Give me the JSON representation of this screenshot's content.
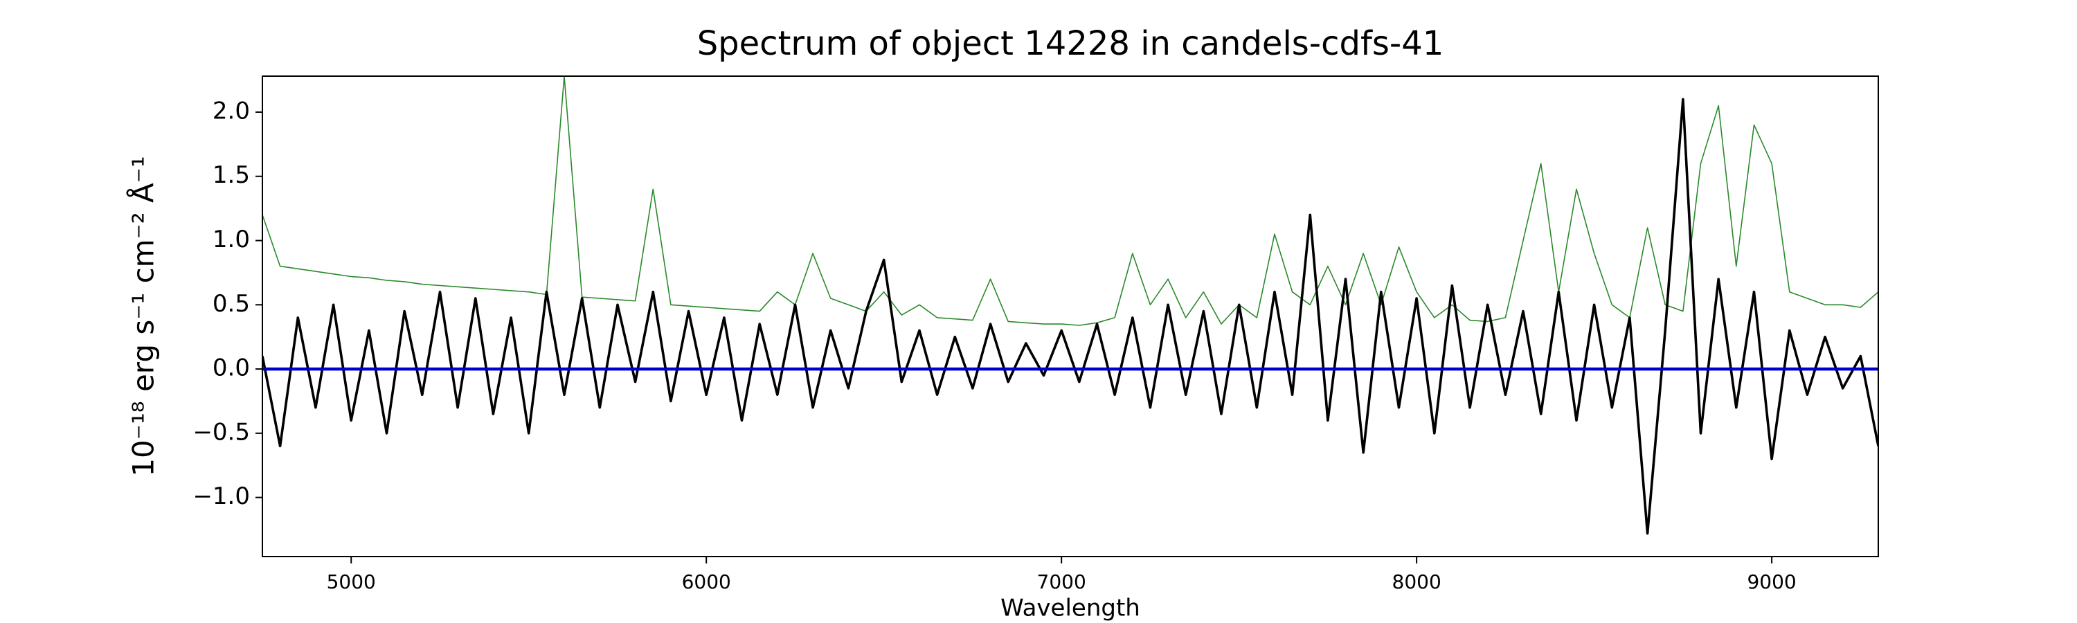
{
  "chart_data": {
    "type": "line",
    "title": "Spectrum of object 14228 in candels-cdfs-41",
    "xlabel": "Wavelength",
    "ylabel": "10⁻¹⁸ erg s⁻¹ cm⁻² Å⁻¹",
    "x": [
      4750,
      4800,
      4850,
      4900,
      4950,
      5000,
      5050,
      5100,
      5150,
      5200,
      5250,
      5300,
      5350,
      5400,
      5450,
      5500,
      5550,
      5600,
      5650,
      5700,
      5750,
      5800,
      5850,
      5900,
      5950,
      6000,
      6050,
      6100,
      6150,
      6200,
      6250,
      6300,
      6350,
      6400,
      6450,
      6500,
      6550,
      6600,
      6650,
      6700,
      6750,
      6800,
      6850,
      6900,
      6950,
      7000,
      7050,
      7100,
      7150,
      7200,
      7250,
      7300,
      7350,
      7400,
      7450,
      7500,
      7550,
      7600,
      7650,
      7700,
      7750,
      7800,
      7850,
      7900,
      7950,
      8000,
      8050,
      8100,
      8150,
      8200,
      8250,
      8300,
      8350,
      8400,
      8450,
      8500,
      8550,
      8600,
      8650,
      8700,
      8750,
      8800,
      8850,
      8900,
      8950,
      9000,
      9050,
      9100,
      9150,
      9200,
      9250,
      9300
    ],
    "series": [
      {
        "color": "#2a8a2a",
        "values": [
          1.2,
          0.8,
          0.78,
          0.76,
          0.74,
          0.72,
          0.71,
          0.69,
          0.68,
          0.66,
          0.65,
          0.64,
          0.63,
          0.62,
          0.61,
          0.6,
          0.58,
          2.28,
          0.56,
          0.55,
          0.54,
          0.53,
          1.4,
          0.5,
          0.49,
          0.48,
          0.47,
          0.46,
          0.45,
          0.6,
          0.5,
          0.9,
          0.55,
          0.5,
          0.45,
          0.6,
          0.42,
          0.5,
          0.4,
          0.39,
          0.38,
          0.7,
          0.37,
          0.36,
          0.35,
          0.35,
          0.34,
          0.36,
          0.4,
          0.9,
          0.5,
          0.7,
          0.4,
          0.6,
          0.35,
          0.5,
          0.4,
          1.05,
          0.6,
          0.5,
          0.8,
          0.5,
          0.9,
          0.5,
          0.95,
          0.6,
          0.4,
          0.5,
          0.38,
          0.37,
          0.4,
          1.0,
          1.6,
          0.6,
          1.4,
          0.9,
          0.5,
          0.4,
          1.1,
          0.5,
          0.45,
          1.6,
          2.05,
          0.8,
          1.9,
          1.6,
          0.6,
          0.55,
          0.5,
          0.5,
          0.48,
          0.6
        ]
      },
      {
        "color": "#000000",
        "values": [
          0.1,
          -0.6,
          0.4,
          -0.3,
          0.5,
          -0.4,
          0.3,
          -0.5,
          0.45,
          -0.2,
          0.6,
          -0.3,
          0.55,
          -0.35,
          0.4,
          -0.5,
          0.6,
          -0.2,
          0.55,
          -0.3,
          0.5,
          -0.1,
          0.6,
          -0.25,
          0.45,
          -0.2,
          0.4,
          -0.4,
          0.35,
          -0.2,
          0.5,
          -0.3,
          0.3,
          -0.15,
          0.45,
          0.85,
          -0.1,
          0.3,
          -0.2,
          0.25,
          -0.15,
          0.35,
          -0.1,
          0.2,
          -0.05,
          0.3,
          -0.1,
          0.35,
          -0.2,
          0.4,
          -0.3,
          0.5,
          -0.2,
          0.45,
          -0.35,
          0.5,
          -0.3,
          0.6,
          -0.2,
          1.2,
          -0.4,
          0.7,
          -0.65,
          0.6,
          -0.3,
          0.55,
          -0.5,
          0.65,
          -0.3,
          0.5,
          -0.2,
          0.45,
          -0.35,
          0.6,
          -0.4,
          0.5,
          -0.3,
          0.4,
          -1.28,
          0.3,
          2.1,
          -0.5,
          0.7,
          -0.3,
          0.6,
          -0.7,
          0.3,
          -0.2,
          0.25,
          -0.15,
          0.1,
          -0.6
        ]
      },
      {
        "color": "#0000cc",
        "values": [
          0,
          0,
          0,
          0,
          0,
          0,
          0,
          0,
          0,
          0,
          0,
          0,
          0,
          0,
          0,
          0,
          0,
          0,
          0,
          0,
          0,
          0,
          0,
          0,
          0,
          0,
          0,
          0,
          0,
          0,
          0,
          0,
          0,
          0,
          0,
          0,
          0,
          0,
          0,
          0,
          0,
          0,
          0,
          0,
          0,
          0,
          0,
          0,
          0,
          0,
          0,
          0,
          0,
          0,
          0,
          0,
          0,
          0,
          0,
          0,
          0,
          0,
          0,
          0,
          0,
          0,
          0,
          0,
          0,
          0,
          0,
          0,
          0,
          0,
          0,
          0,
          0,
          0,
          0,
          0,
          0,
          0,
          0,
          0,
          0,
          0,
          0,
          0,
          0,
          0,
          0,
          0
        ]
      }
    ],
    "xlim": [
      4750,
      9300
    ],
    "xticks": [
      5000,
      6000,
      7000,
      8000,
      9000
    ],
    "ylim": [
      -1.46,
      2.28
    ],
    "yticks": [
      {
        "value": -1.0,
        "label": "−1.0"
      },
      {
        "value": -0.5,
        "label": "−0.5"
      },
      {
        "value": 0,
        "label": "0.0"
      },
      {
        "value": 0.5,
        "label": "0.5"
      },
      {
        "value": 1.0,
        "label": "1.0"
      },
      {
        "value": 1.5,
        "label": "1.5"
      },
      {
        "value": 2.0,
        "label": "2.0"
      }
    ]
  }
}
